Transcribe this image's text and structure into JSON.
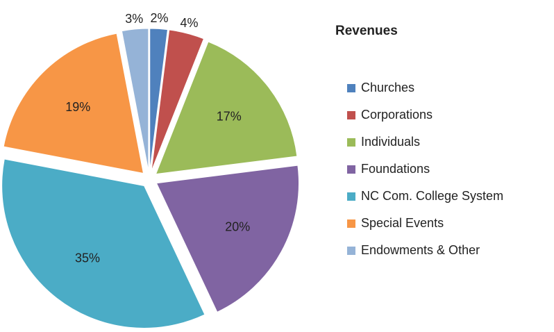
{
  "chart_data": {
    "type": "pie",
    "title": "Revenues",
    "categories": [
      "Churches",
      "Corporations",
      "Individuals",
      "Foundations",
      "NC Com. College System",
      "Special Events",
      "Endowments & Other"
    ],
    "values": [
      2,
      4,
      17,
      20,
      35,
      19,
      3
    ],
    "value_labels": [
      "2%",
      "4%",
      "17%",
      "20%",
      "35%",
      "19%",
      "3%"
    ],
    "colors": [
      "#4f81bd",
      "#c0504d",
      "#9bbb59",
      "#8064a2",
      "#4bacc6",
      "#f79646",
      "#95b3d7"
    ],
    "legend": "right"
  }
}
